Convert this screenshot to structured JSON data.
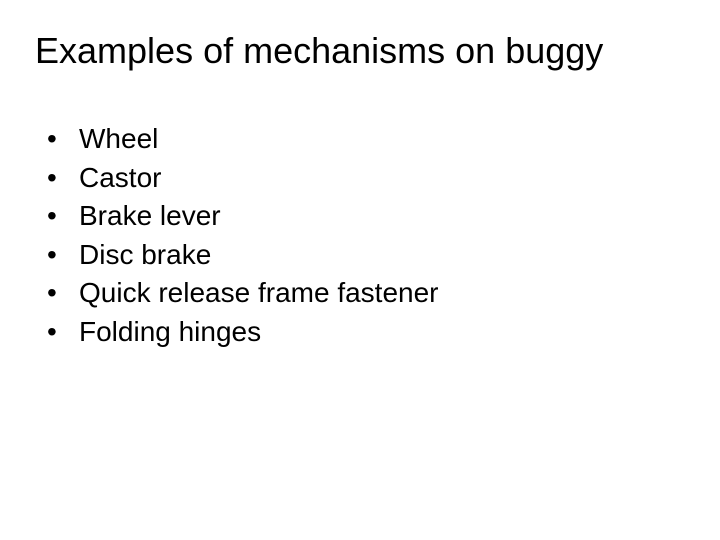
{
  "slide": {
    "title": "Examples of mechanisms on buggy",
    "title_fontsize": 36,
    "title_color": "#000000",
    "background_color": "#ffffff",
    "body_fontsize": 28,
    "body_color": "#000000",
    "bullet_marker": "•",
    "bullets": [
      "Wheel",
      "Castor",
      "Brake lever",
      "Disc brake",
      "Quick release frame fastener",
      "Folding hinges"
    ]
  }
}
